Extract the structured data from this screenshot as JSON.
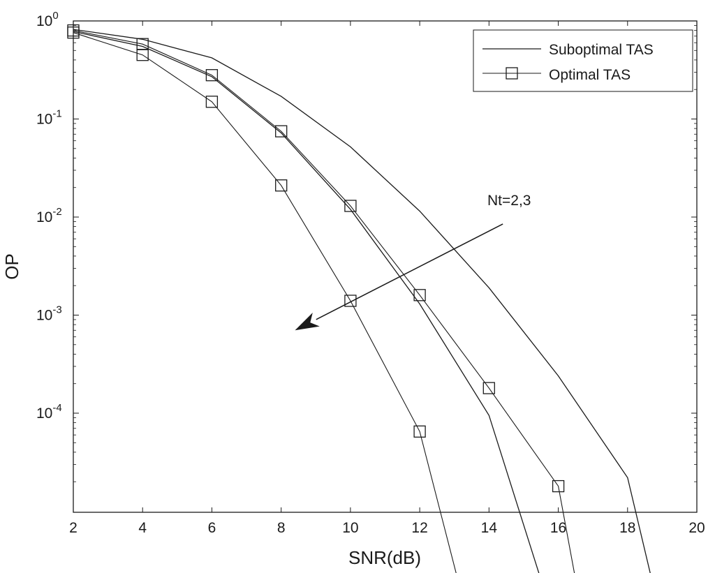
{
  "chart_data": {
    "type": "line",
    "title": "",
    "xlabel": "SNR(dB)",
    "ylabel": "OP",
    "xlim": [
      2,
      20
    ],
    "ylim": [
      2e-06,
      1
    ],
    "yscale": "log",
    "grid": false,
    "legend_position": "top-right",
    "x_ticks": [
      2,
      4,
      6,
      8,
      10,
      12,
      14,
      16,
      18,
      20
    ],
    "y_ticks": [
      {
        "value": 1,
        "base": "10",
        "exp": "0"
      },
      {
        "value": 0.1,
        "base": "10",
        "exp": "-1"
      },
      {
        "value": 0.01,
        "base": "10",
        "exp": "-2"
      },
      {
        "value": 0.001,
        "base": "10",
        "exp": "-3"
      },
      {
        "value": 0.0001,
        "base": "10",
        "exp": "-4"
      }
    ],
    "legend": [
      {
        "label": "Suboptimal TAS",
        "marker": "none"
      },
      {
        "label": "Optimal TAS",
        "marker": "square"
      }
    ],
    "series": [
      {
        "group": "Suboptimal TAS",
        "nt": 2,
        "marker": "none",
        "points": [
          [
            2,
            0.82
          ],
          [
            4,
            0.65
          ],
          [
            6,
            0.42
          ],
          [
            8,
            0.17
          ],
          [
            10,
            0.052
          ],
          [
            12,
            0.0115
          ],
          [
            14,
            0.0019
          ],
          [
            16,
            0.00024
          ],
          [
            18,
            2.2e-05
          ],
          [
            18.7,
            2e-06
          ]
        ]
      },
      {
        "group": "Suboptimal TAS",
        "nt": 3,
        "marker": "none",
        "points": [
          [
            2,
            0.78
          ],
          [
            4,
            0.55
          ],
          [
            6,
            0.27
          ],
          [
            8,
            0.072
          ],
          [
            10,
            0.012
          ],
          [
            12,
            0.0013
          ],
          [
            14,
            9.5e-05
          ],
          [
            15.5,
            2e-06
          ]
        ]
      },
      {
        "group": "Optimal TAS",
        "nt": 2,
        "marker": "square",
        "points": [
          [
            2,
            0.8
          ],
          [
            4,
            0.58
          ],
          [
            6,
            0.28
          ],
          [
            8,
            0.075
          ],
          [
            10,
            0.013
          ],
          [
            12,
            0.0016
          ],
          [
            14,
            0.00018
          ],
          [
            16,
            1.8e-05
          ],
          [
            16.5,
            2e-06
          ]
        ]
      },
      {
        "group": "Optimal TAS",
        "nt": 3,
        "marker": "square",
        "points": [
          [
            2,
            0.76
          ],
          [
            4,
            0.45
          ],
          [
            6,
            0.15
          ],
          [
            8,
            0.021
          ],
          [
            10,
            0.0014
          ],
          [
            12,
            6.5e-05
          ],
          [
            13.1,
            2e-06
          ]
        ]
      }
    ],
    "annotation": {
      "text": "Nt=2,3",
      "arrow_from": [
        14.4,
        0.0085
      ],
      "arrow_to": [
        8.4,
        0.0007
      ]
    }
  }
}
